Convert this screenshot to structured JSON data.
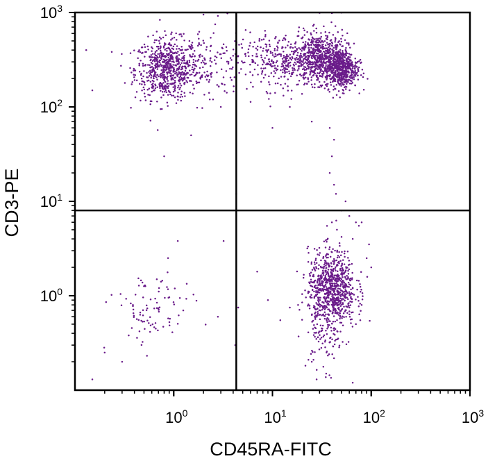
{
  "chart_data": {
    "type": "scatter",
    "title": "",
    "xlabel": "CD45RA-FITC",
    "ylabel": "CD3-PE",
    "xscale": "log",
    "yscale": "log",
    "xlim": [
      0.1,
      1000
    ],
    "ylim": [
      0.1,
      1000
    ],
    "x_ticks": [
      {
        "value": 1,
        "base": "10",
        "exp": "0"
      },
      {
        "value": 10,
        "base": "10",
        "exp": "1"
      },
      {
        "value": 100,
        "base": "10",
        "exp": "2"
      },
      {
        "value": 1000,
        "base": "10",
        "exp": "3"
      }
    ],
    "y_ticks": [
      {
        "value": 1,
        "base": "10",
        "exp": "0"
      },
      {
        "value": 10,
        "base": "10",
        "exp": "1"
      },
      {
        "value": 100,
        "base": "10",
        "exp": "2"
      },
      {
        "value": 1000,
        "base": "10",
        "exp": "3"
      }
    ],
    "quadrant_gate": {
      "x": 4.3,
      "y": 8
    },
    "point_color": "#6a1b8a",
    "grid": false,
    "legend": "none",
    "populations": [
      {
        "center": [
          0.85,
          250
        ],
        "spread": [
          0.16,
          0.16
        ],
        "count": 650
      },
      {
        "center": [
          1.9,
          300
        ],
        "spread": [
          0.22,
          0.17
        ],
        "count": 150
      },
      {
        "center": [
          12,
          300
        ],
        "spread": [
          0.22,
          0.15
        ],
        "count": 300
      },
      {
        "center": [
          30,
          330
        ],
        "spread": [
          0.14,
          0.13
        ],
        "count": 650
      },
      {
        "center": [
          50,
          250
        ],
        "spread": [
          0.08,
          0.1
        ],
        "count": 500
      },
      {
        "center": [
          40,
          1.2
        ],
        "spread": [
          0.12,
          0.2
        ],
        "count": 800
      },
      {
        "center": [
          35,
          0.4
        ],
        "spread": [
          0.1,
          0.2
        ],
        "count": 100
      },
      {
        "center": [
          0.6,
          0.7
        ],
        "spread": [
          0.2,
          0.2
        ],
        "count": 90
      }
    ],
    "points": [
      [
        38,
        20
      ],
      [
        40,
        30
      ],
      [
        42,
        15
      ],
      [
        44,
        12
      ],
      [
        40,
        6
      ],
      [
        45,
        5
      ],
      [
        50,
        8
      ],
      [
        55,
        10
      ],
      [
        60,
        7
      ],
      [
        65,
        4
      ],
      [
        70,
        6
      ],
      [
        42,
        45
      ],
      [
        38,
        60
      ],
      [
        25,
        70
      ],
      [
        15,
        100
      ],
      [
        10,
        60
      ],
      [
        3.0,
        100
      ],
      [
        2.5,
        120
      ],
      [
        1.5,
        50
      ],
      [
        0.8,
        30
      ],
      [
        0.15,
        150
      ],
      [
        0.13,
        400
      ],
      [
        2.0,
        950
      ],
      [
        2.8,
        920
      ],
      [
        3.5,
        980
      ],
      [
        30,
        990
      ],
      [
        40,
        985
      ],
      [
        50,
        995
      ],
      [
        3.2,
        3.8
      ],
      [
        1.1,
        3.8
      ],
      [
        4.3,
        12
      ],
      [
        4.2,
        0.3
      ],
      [
        4.5,
        0.75
      ],
      [
        2.8,
        0.6
      ],
      [
        0.15,
        0.13
      ],
      [
        0.2,
        0.25
      ],
      [
        0.3,
        0.2
      ],
      [
        0.35,
        0.38
      ],
      [
        0.45,
        0.42
      ],
      [
        7,
        1.8
      ],
      [
        9,
        0.9
      ],
      [
        12,
        0.55
      ],
      [
        15,
        0.75
      ],
      [
        20,
        0.85
      ],
      [
        25,
        0.2
      ],
      [
        28,
        0.13
      ],
      [
        35,
        0.15
      ],
      [
        65,
        0.12
      ],
      [
        70,
        0.5
      ],
      [
        80,
        0.8
      ],
      [
        90,
        2.5
      ],
      [
        95,
        3.5
      ],
      [
        75,
        5.5
      ],
      [
        80,
        6
      ],
      [
        100,
        2
      ]
    ]
  }
}
